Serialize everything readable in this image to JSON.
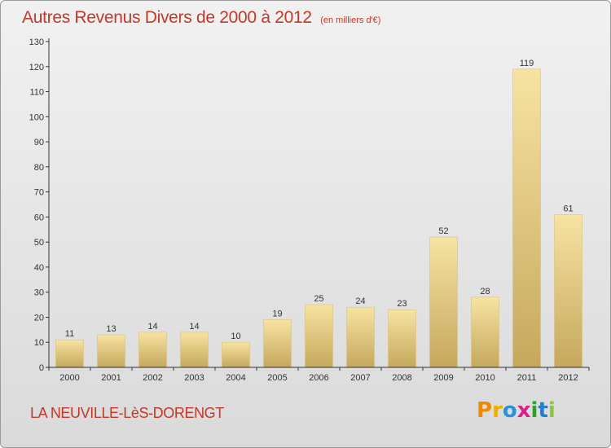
{
  "page": {
    "location": "LA NEUVILLE-LèS-DORENGT",
    "logo": {
      "letters": [
        "P",
        "r",
        "o",
        "x",
        "i",
        "t",
        "i"
      ],
      "colors": [
        "#f08a00",
        "#e8b100",
        "#2f8fd8",
        "#d8208c",
        "#2aa12a",
        "#1f7fd0",
        "#8cc63f"
      ]
    }
  },
  "chart_data": {
    "type": "bar",
    "title": "Autres Revenus Divers de 2000 à 2012",
    "subtitle": "(en milliers d'€)",
    "xlabel": "",
    "ylabel": "",
    "categories": [
      "2000",
      "2001",
      "2002",
      "2003",
      "2004",
      "2005",
      "2006",
      "2007",
      "2008",
      "2009",
      "2010",
      "2011",
      "2012"
    ],
    "values": [
      11,
      13,
      14,
      14,
      10,
      19,
      25,
      24,
      23,
      52,
      28,
      119,
      61
    ],
    "ylim": [
      0,
      130
    ],
    "yticks": [
      0,
      10,
      20,
      30,
      40,
      50,
      60,
      70,
      80,
      90,
      100,
      110,
      120,
      130
    ],
    "grid": false,
    "legend": "none",
    "colors": {
      "bar_light": "#f7e3a2",
      "bar_dark": "#c5a85c",
      "axis": "#333333",
      "text_accent": "#c0392b"
    }
  }
}
